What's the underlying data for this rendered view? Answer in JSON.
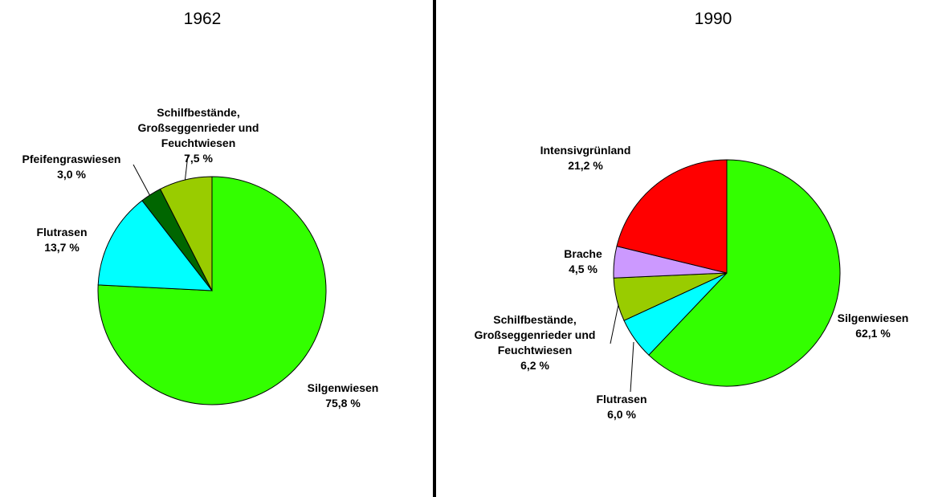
{
  "chart_data": [
    {
      "type": "pie",
      "title": "1962",
      "categories": [
        "Silgenwiesen",
        "Flutrasen",
        "Pfeifengraswiesen",
        "Schilfbestände,\nGroßseggenrieder und\nFeuchtwiesen"
      ],
      "values": [
        75.8,
        13.7,
        3.0,
        7.5
      ],
      "value_labels": [
        "75,8 %",
        "13,7 %",
        "3,0 %",
        "7,5 %"
      ],
      "colors": [
        "#33ff00",
        "#00ffff",
        "#006600",
        "#99cc00"
      ]
    },
    {
      "type": "pie",
      "title": "1990",
      "categories": [
        "Silgenwiesen",
        "Flutrasen",
        "Schilfbestände,\nGroßseggenrieder und\nFeuchtwiesen",
        "Brache",
        "Intensivgrünland"
      ],
      "values": [
        62.1,
        6.0,
        6.2,
        4.5,
        21.2
      ],
      "value_labels": [
        "62,1 %",
        "6,0 %",
        "6,2 %",
        "4,5 %",
        "21,2 %"
      ],
      "colors": [
        "#33ff00",
        "#00ffff",
        "#99cc00",
        "#cc99ff",
        "#ff0000"
      ]
    }
  ]
}
